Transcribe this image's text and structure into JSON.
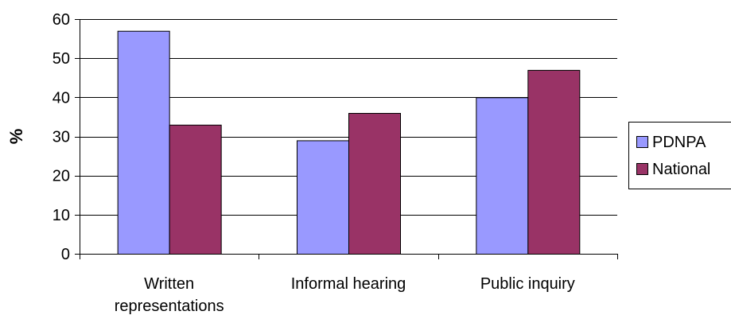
{
  "chart_data": {
    "type": "bar",
    "categories": [
      "Written representations",
      "Informal hearing",
      "Public inquiry"
    ],
    "category_label_lines": [
      [
        "Written",
        "representations"
      ],
      [
        "Informal hearing"
      ],
      [
        "Public inquiry"
      ]
    ],
    "series": [
      {
        "name": "PDNPA",
        "values": [
          57,
          29,
          40
        ],
        "color": "#9999ff"
      },
      {
        "name": "National",
        "values": [
          33,
          36,
          47
        ],
        "color": "#993366"
      }
    ],
    "title": "",
    "xlabel": "",
    "ylabel": "%",
    "ylim": [
      0,
      60
    ],
    "yticks": [
      0,
      10,
      20,
      30,
      40,
      50,
      60
    ],
    "grid": true,
    "legend_position": "right"
  }
}
